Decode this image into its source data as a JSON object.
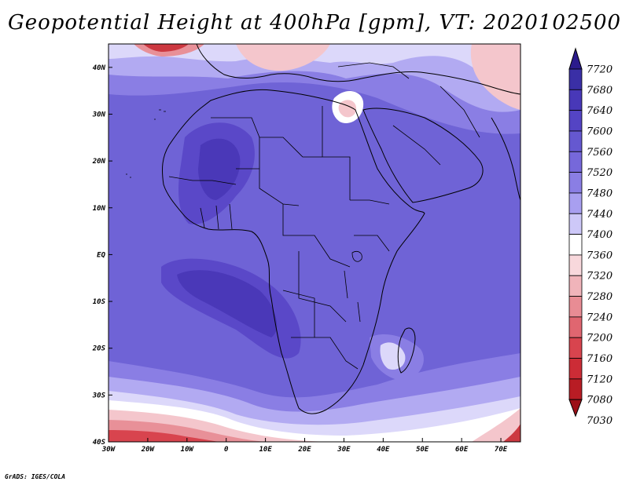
{
  "title": "Geopotential Height at 400hPa [gpm], VT: 2020102500",
  "credit": "GrADS: IGES/COLA",
  "map": {
    "lon_range": [
      -30,
      75
    ],
    "lat_range": [
      -40,
      45
    ],
    "lon_ticks": [
      "30W",
      "20W",
      "10W",
      "0",
      "10E",
      "20E",
      "30E",
      "40E",
      "50E",
      "60E",
      "70E"
    ],
    "lat_ticks": [
      "40S",
      "30S",
      "20S",
      "10S",
      "EQ",
      "10N",
      "20N",
      "30N",
      "40N"
    ]
  },
  "colorbar": {
    "levels": [
      "7720",
      "7680",
      "7640",
      "7600",
      "7560",
      "7520",
      "7480",
      "7440",
      "7400",
      "7360",
      "7320",
      "7280",
      "7240",
      "7200",
      "7160",
      "7120",
      "7080",
      "7030"
    ],
    "colors": [
      "#2b1b8c",
      "#3a2fa6",
      "#4838b8",
      "#5444c4",
      "#6558d0",
      "#7668da",
      "#8a7ee4",
      "#a89ff0",
      "#cdc8f8",
      "#ffffff",
      "#f8d8dc",
      "#f0b4ba",
      "#e88c94",
      "#e06670",
      "#d8444e",
      "#cc2c36",
      "#b81c24",
      "#9c1018"
    ]
  }
}
